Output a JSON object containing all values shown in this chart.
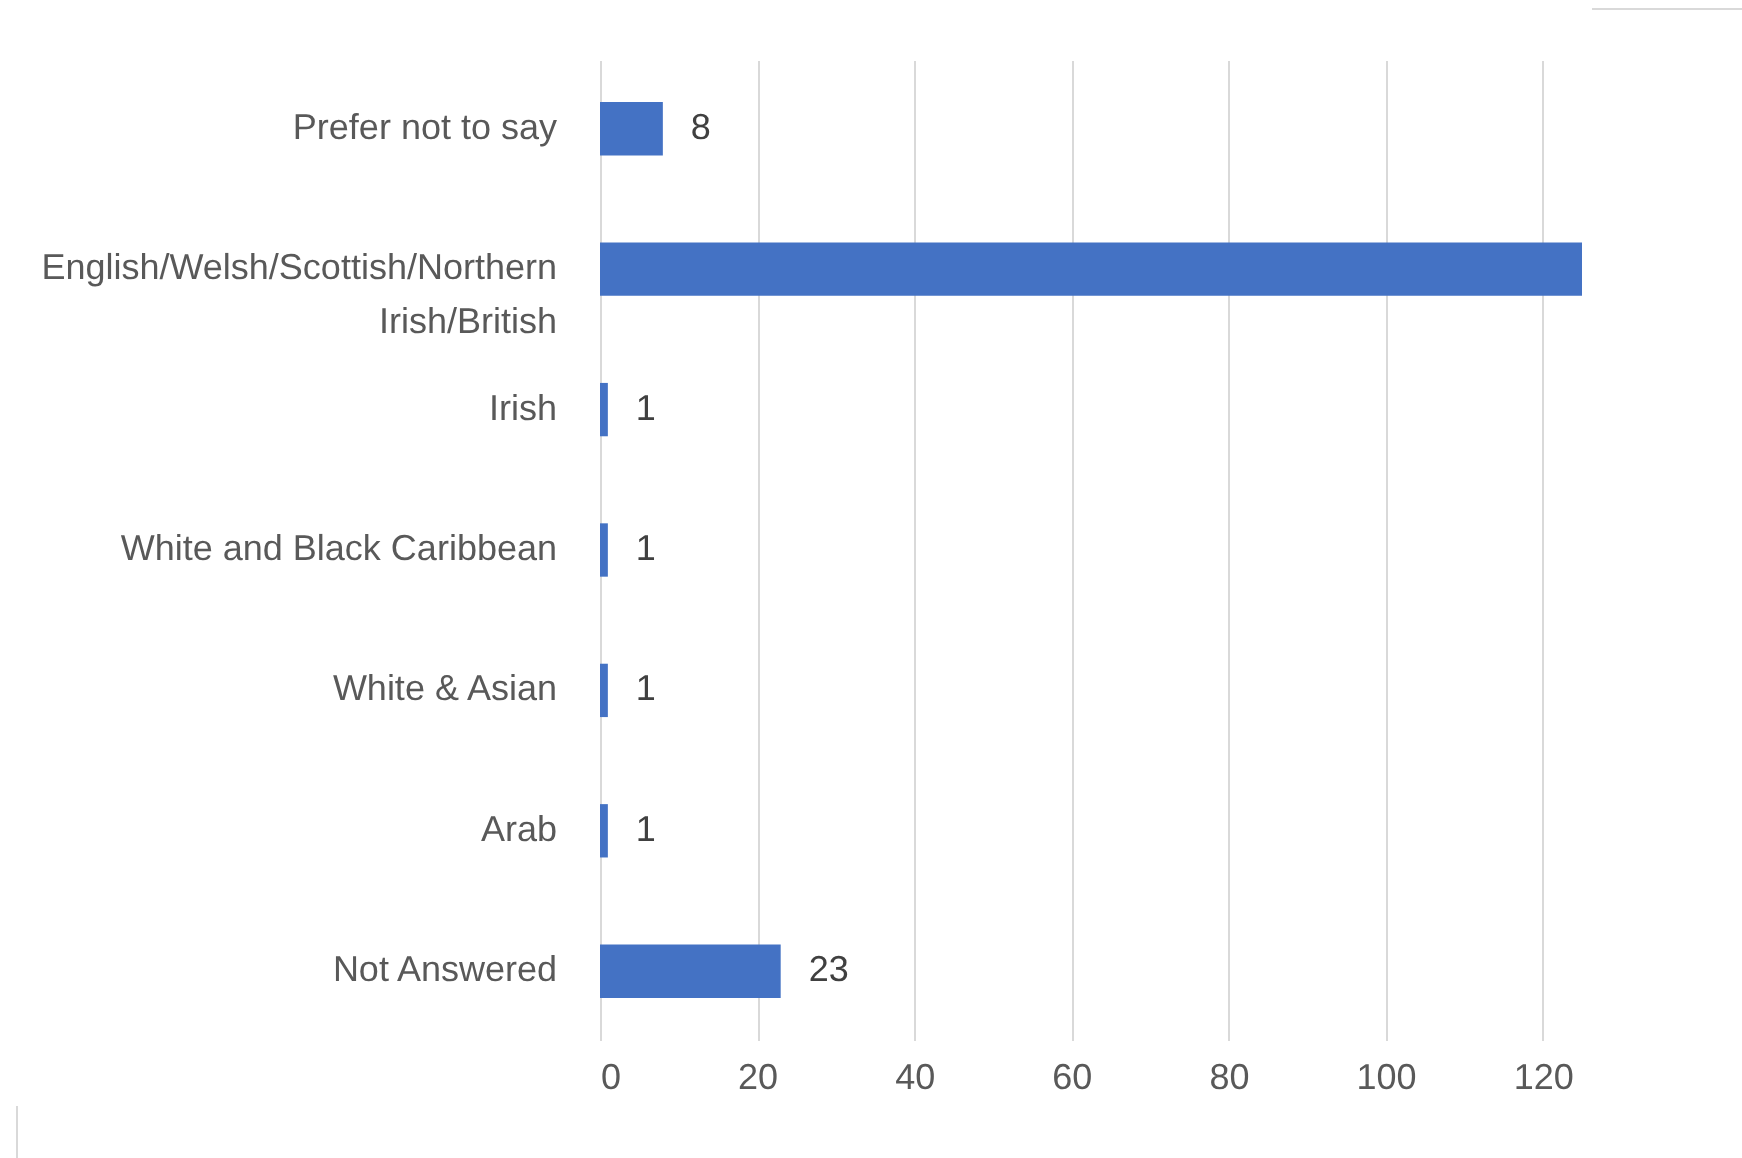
{
  "chart_data": {
    "type": "bar",
    "orientation": "horizontal",
    "categories": [
      "Prefer not to say",
      "English/Welsh/Scottish/Northern Irish/British",
      "Irish",
      "White and Black Caribbean",
      "White & Asian",
      "Arab",
      "Not Answered"
    ],
    "values": [
      8,
      125,
      1,
      1,
      1,
      1,
      23
    ],
    "value_labels": [
      "8",
      null,
      "1",
      "1",
      "1",
      "1",
      "23"
    ],
    "color": "#4472c4",
    "xlim": [
      0,
      125
    ],
    "xticks": [
      0,
      20,
      40,
      60,
      80,
      100,
      120
    ],
    "grid": "x"
  }
}
